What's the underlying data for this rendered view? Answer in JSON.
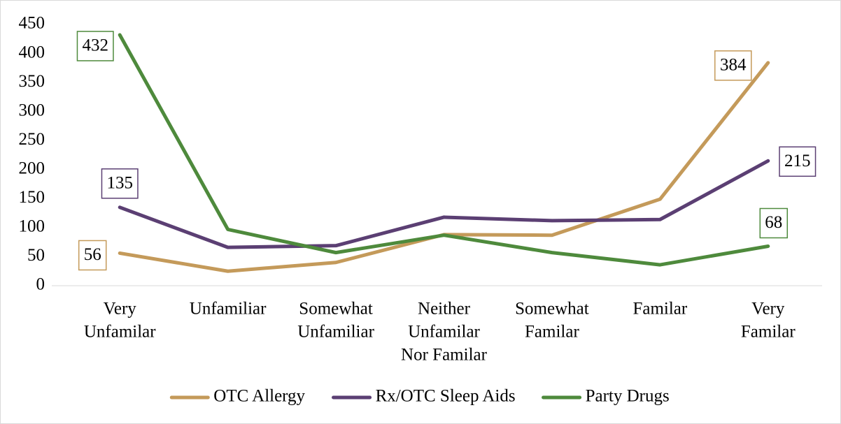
{
  "chart_data": {
    "type": "line",
    "categories": [
      [
        "Very",
        "Unfamilar"
      ],
      [
        "Unfamiliar"
      ],
      [
        "Somewhat",
        "Unfamiliar"
      ],
      [
        "Neither",
        "Unfamilar",
        "Nor Familar"
      ],
      [
        "Somewhat",
        "Familar"
      ],
      [
        "Familar"
      ],
      [
        "Very",
        "Familar"
      ]
    ],
    "series": [
      {
        "name": "OTC Allergy",
        "color": "#c49a5a",
        "values": [
          56,
          25,
          40,
          88,
          87,
          149,
          384
        ]
      },
      {
        "name": "Rx/OTC Sleep Aids",
        "color": "#5b3f73",
        "values": [
          135,
          66,
          69,
          118,
          112,
          114,
          215
        ]
      },
      {
        "name": "Party Drugs",
        "color": "#4e8a3c",
        "values": [
          432,
          97,
          57,
          87,
          57,
          36,
          68
        ]
      }
    ],
    "ylim": [
      0,
      450
    ],
    "yticks": [
      0,
      50,
      100,
      150,
      200,
      250,
      300,
      350,
      400,
      450
    ],
    "legend": "bottom"
  }
}
